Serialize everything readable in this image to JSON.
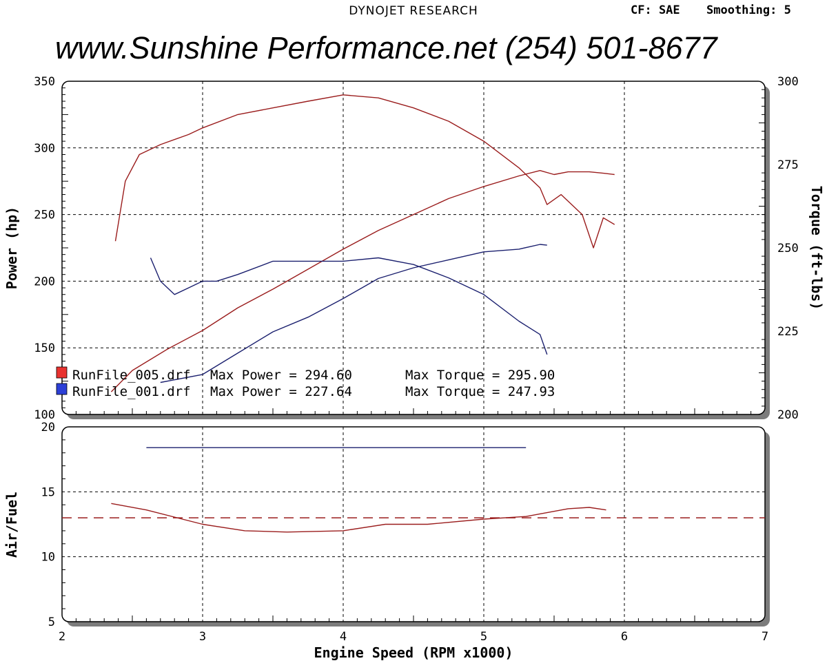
{
  "header": {
    "title": "DYNOJET RESEARCH",
    "correction": "CF: SAE",
    "smoothing": "Smoothing: 5",
    "banner": "www.Sunshine Performance.net  (254) 501-8677"
  },
  "chart_data": [
    {
      "type": "line",
      "panel": "power-torque",
      "xlabel": "Engine Speed (RPM x1000)",
      "ylabel": "Power (hp)",
      "y2label": "Torque (ft-lbs)",
      "xlim": [
        2,
        7
      ],
      "ylim": [
        100,
        350
      ],
      "y2lim": [
        200,
        300
      ],
      "xticks": [
        2,
        3,
        4,
        5,
        6,
        7
      ],
      "yticks": [
        100,
        150,
        200,
        250,
        300,
        350
      ],
      "y2ticks": [
        200,
        225,
        250,
        275,
        300
      ],
      "grid": true,
      "series": [
        {
          "name": "RunFile_005.drf",
          "quantity": "power",
          "axis": "left",
          "color": "#9a1c1c",
          "x": [
            2.35,
            2.5,
            2.75,
            3.0,
            3.25,
            3.5,
            3.75,
            4.0,
            4.25,
            4.5,
            4.75,
            5.0,
            5.25,
            5.4,
            5.5,
            5.6,
            5.75,
            5.85,
            5.93
          ],
          "y": [
            117,
            133,
            149,
            163,
            180,
            194,
            209,
            224,
            238,
            250,
            262,
            271,
            279,
            283,
            280,
            282,
            282,
            281,
            280
          ]
        },
        {
          "name": "RunFile_005.drf",
          "quantity": "torque",
          "axis": "right",
          "color": "#9a1c1c",
          "x": [
            2.38,
            2.45,
            2.55,
            2.7,
            2.9,
            3.0,
            3.25,
            3.5,
            3.75,
            4.0,
            4.25,
            4.5,
            4.75,
            5.0,
            5.25,
            5.4,
            5.45,
            5.55,
            5.7,
            5.78,
            5.85,
            5.93
          ],
          "y": [
            252,
            270,
            278,
            281,
            284,
            286,
            290,
            292,
            294,
            295.9,
            295,
            292,
            288,
            282,
            274,
            268,
            263,
            266,
            260,
            250,
            259,
            257
          ]
        },
        {
          "name": "RunFile_001.drf",
          "quantity": "power",
          "axis": "left",
          "color": "#1a1f6e",
          "x": [
            2.7,
            3.0,
            3.25,
            3.5,
            3.75,
            4.0,
            4.25,
            4.5,
            4.75,
            5.0,
            5.25,
            5.4,
            5.45
          ],
          "y": [
            124,
            130,
            146,
            162,
            173,
            187,
            202,
            210,
            216,
            222,
            224,
            227.6,
            227
          ]
        },
        {
          "name": "RunFile_001.drf",
          "quantity": "torque",
          "axis": "right",
          "color": "#1a1f6e",
          "x": [
            2.63,
            2.7,
            2.8,
            2.9,
            3.0,
            3.1,
            3.25,
            3.5,
            3.75,
            4.0,
            4.25,
            4.5,
            4.75,
            5.0,
            5.25,
            5.4,
            5.45
          ],
          "y": [
            247,
            240,
            236,
            238,
            240,
            240,
            242,
            246,
            246,
            246,
            247,
            245,
            241,
            236,
            228,
            224,
            218
          ]
        }
      ],
      "legend": [
        {
          "swatch": "#e8322f",
          "file": "RunFile_005.drf",
          "max_power": "Max Power = 294.60",
          "max_torque": "Max Torque = 295.90"
        },
        {
          "swatch": "#2c3fd6",
          "file": "RunFile_001.drf",
          "max_power": "Max Power = 227.64",
          "max_torque": "Max Torque = 247.93"
        }
      ]
    },
    {
      "type": "line",
      "panel": "air-fuel",
      "xlabel": "Engine Speed (RPM x1000)",
      "ylabel": "Air/Fuel",
      "xlim": [
        2,
        7
      ],
      "ylim": [
        5,
        20
      ],
      "xticks": [
        2,
        3,
        4,
        5,
        6,
        7
      ],
      "yticks": [
        5,
        10,
        15,
        20
      ],
      "grid": true,
      "reference_line": {
        "y": 13,
        "style": "dashed",
        "color": "#9a1c1c"
      },
      "series": [
        {
          "name": "RunFile_001.drf",
          "color": "#1a1f6e",
          "x": [
            2.6,
            5.3
          ],
          "y": [
            18.4,
            18.4
          ]
        },
        {
          "name": "RunFile_005.drf",
          "color": "#9a1c1c",
          "x": [
            2.35,
            2.6,
            3.0,
            3.3,
            3.6,
            4.0,
            4.3,
            4.6,
            5.0,
            5.3,
            5.6,
            5.75,
            5.87
          ],
          "y": [
            14.1,
            13.6,
            12.5,
            12.0,
            11.9,
            12.0,
            12.5,
            12.5,
            12.9,
            13.1,
            13.7,
            13.8,
            13.6
          ]
        }
      ]
    }
  ]
}
